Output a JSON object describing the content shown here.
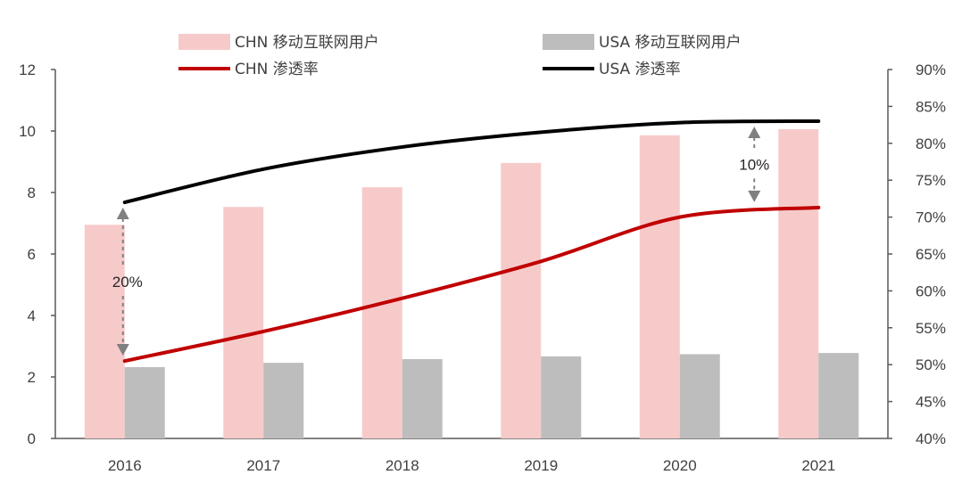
{
  "chart_data": {
    "type": "bar",
    "categories": [
      "2016",
      "2017",
      "2018",
      "2019",
      "2020",
      "2021"
    ],
    "series": [
      {
        "name": "CHN 移动互联网用户",
        "kind": "bar",
        "axis": "left",
        "color": "#f7caca",
        "values": [
          6.95,
          7.53,
          8.17,
          8.96,
          9.86,
          10.06
        ]
      },
      {
        "name": "USA 移动互联网用户",
        "kind": "bar",
        "axis": "left",
        "color": "#bdbdbd",
        "values": [
          2.32,
          2.46,
          2.58,
          2.67,
          2.74,
          2.78
        ]
      },
      {
        "name": "CHN 渗透率",
        "kind": "line",
        "axis": "right",
        "color": "#c00000",
        "values": [
          50.5,
          54.5,
          59.0,
          64.0,
          70.0,
          71.3
        ]
      },
      {
        "name": "USA 渗透率",
        "kind": "line",
        "axis": "right",
        "color": "#000000",
        "values": [
          72.0,
          76.5,
          79.5,
          81.5,
          82.8,
          83.0
        ]
      }
    ],
    "ylim": [
      0,
      12
    ],
    "yticks": [
      "0",
      "2",
      "4",
      "6",
      "8",
      "10",
      "12"
    ],
    "y2lim": [
      40,
      90
    ],
    "y2ticks": [
      "40%",
      "45%",
      "50%",
      "55%",
      "60%",
      "65%",
      "70%",
      "75%",
      "80%",
      "85%",
      "90%"
    ],
    "legend_position": "top",
    "annotations": [
      {
        "text": "20%",
        "category": "2016",
        "from": 50.5,
        "to": 72.0
      },
      {
        "text": "10%",
        "category": "2021",
        "from": 71.3,
        "to": 83.0
      }
    ]
  }
}
